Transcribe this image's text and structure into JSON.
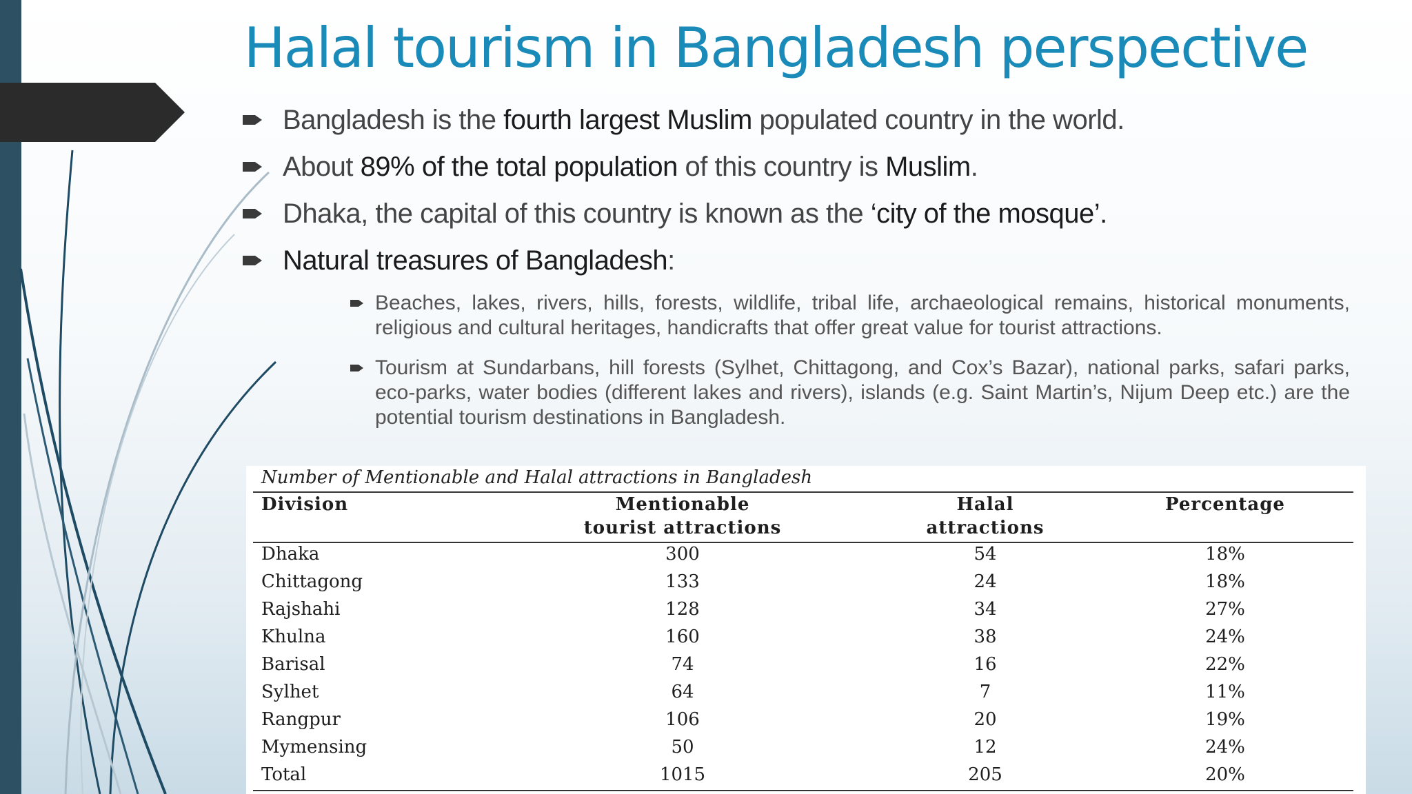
{
  "slide": {
    "title": "Halal tourism in Bangladesh perspective"
  },
  "bullets": [
    {
      "parts": [
        {
          "t": "Bangladesh is the ",
          "b": false
        },
        {
          "t": "fourth largest Muslim",
          "b": true
        },
        {
          "t": " populated country in the world.",
          "b": false
        }
      ]
    },
    {
      "parts": [
        {
          "t": "About ",
          "b": false
        },
        {
          "t": "89% of the total population",
          "b": true
        },
        {
          "t": " of this country is ",
          "b": false
        },
        {
          "t": "Muslim",
          "b": true
        },
        {
          "t": ".",
          "b": false
        }
      ]
    },
    {
      "parts": [
        {
          "t": "Dhaka, the capital of this country is known as the ",
          "b": false
        },
        {
          "t": "‘city of the mosque’.",
          "b": true
        }
      ]
    },
    {
      "parts": [
        {
          "t": "Natural treasures of Bangladesh",
          "b": true
        },
        {
          "t": ":",
          "b": false
        }
      ]
    }
  ],
  "sub_bullets": [
    "Beaches, lakes, rivers, hills, forests, wildlife, tribal life, archaeological remains, historical monuments, religious and cultural heritages, handicrafts that offer great value for tourist attractions.",
    "Tourism at Sundarbans, hill forests (Sylhet, Chittagong, and Cox’s Bazar), national parks, safari parks, eco-parks, water bodies (different lakes and rivers), islands (e.g. Saint Martin’s, Nijum Deep etc.) are the potential tourism destinations in Bangladesh."
  ],
  "table": {
    "caption": "Number of Mentionable and Halal attractions in Bangladesh",
    "headers": {
      "division": "Division",
      "mentionable_1": "Mentionable",
      "mentionable_2": "tourist attractions",
      "halal_1": "Halal",
      "halal_2": "attractions",
      "percentage": "Percentage"
    },
    "rows": [
      [
        "Dhaka",
        "300",
        "54",
        "18%"
      ],
      [
        "Chittagong",
        "133",
        "24",
        "18%"
      ],
      [
        "Rajshahi",
        "128",
        "34",
        "27%"
      ],
      [
        "Khulna",
        "160",
        "38",
        "24%"
      ],
      [
        "Barisal",
        "74",
        "16",
        "22%"
      ],
      [
        "Sylhet",
        "64",
        "7",
        "11%"
      ],
      [
        "Rangpur",
        "106",
        "20",
        "19%"
      ],
      [
        "Mymensing",
        "50",
        "12",
        "24%"
      ],
      [
        "Total",
        "1015",
        "205",
        "20%"
      ]
    ]
  },
  "colors": {
    "title": "#1a8ab8",
    "left_bar": "#2e5063",
    "banner": "#2b2b2b"
  }
}
